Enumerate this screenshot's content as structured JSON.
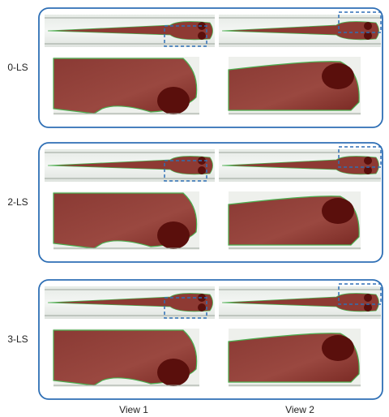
{
  "rows": [
    {
      "label": "0-LS"
    },
    {
      "label": "2-LS"
    },
    {
      "label": "3-LS"
    }
  ],
  "columns": [
    "View 1",
    "View 2"
  ]
}
